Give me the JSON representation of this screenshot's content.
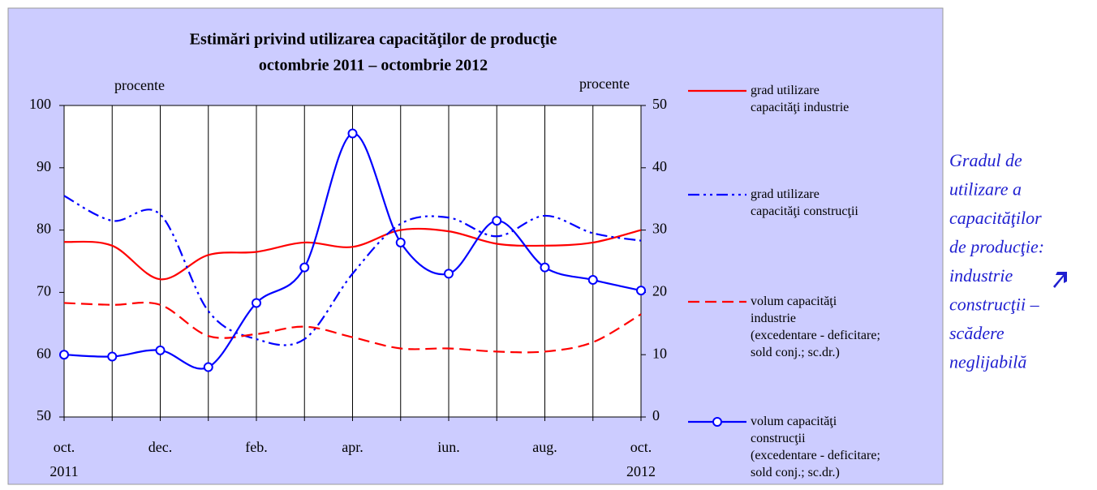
{
  "chart_data": {
    "type": "line",
    "title": "Estimări privind utilizarea capacităţilor de producţie",
    "subtitle": "octombrie 2011 – octombrie 2012",
    "y_label": "procente",
    "y2_label": "procente",
    "categories": [
      "oct.",
      null,
      "dec.",
      null,
      "feb.",
      null,
      "apr.",
      null,
      "iun.",
      null,
      "aug.",
      null,
      "oct."
    ],
    "years": [
      "2011",
      null,
      null,
      null,
      null,
      null,
      null,
      null,
      null,
      null,
      null,
      null,
      "2012"
    ],
    "ylim": [
      50,
      100
    ],
    "yticks": [
      50,
      60,
      70,
      80,
      90,
      100
    ],
    "y2lim": [
      0,
      50
    ],
    "y2ticks": [
      0,
      10,
      20,
      30,
      40,
      50
    ],
    "grid": "x",
    "series": [
      {
        "name": "grad utilizare\ncapacităţi industrie",
        "color": "#ff0000",
        "dash": "solid",
        "axis": "y",
        "values": [
          78.1,
          77.5,
          72.1,
          76,
          76.5,
          78,
          77.3,
          80,
          79.8,
          77.8,
          77.5,
          78,
          80
        ]
      },
      {
        "name": "grad utilizare\ncapacităţi construcţii",
        "color": "#0000ff",
        "dash": "dashdot",
        "axis": "y",
        "values": [
          85.5,
          81.5,
          82.5,
          67,
          62.5,
          62.5,
          73,
          81,
          82,
          79,
          82.3,
          79.5,
          78.3
        ]
      },
      {
        "name": "volum capacităţi\nindustrie\n(excedentare - deficitare;\nsold conj.; sc.dr.)",
        "color": "#ff0000",
        "dash": "dashed",
        "axis": "y2",
        "values": [
          18.3,
          18,
          18,
          13,
          13.3,
          14.5,
          12.8,
          11,
          11,
          10.5,
          10.5,
          12,
          16.5
        ]
      },
      {
        "name": "volum capacităţi\nconstrucţii\n(excedentare - deficitare;\nsold conj.; sc.dr.)",
        "color": "#0000ff",
        "dash": "solid",
        "marker": "circle",
        "axis": "y2",
        "values": [
          10,
          9.7,
          10.7,
          8,
          18.3,
          24,
          45.5,
          28,
          23,
          31.5,
          24,
          22,
          20.3
        ]
      }
    ]
  },
  "note": [
    "Gradul de",
    "utilizare a",
    "capacităţilor",
    "de producţie:",
    "industrie",
    "construcţii –",
    "scădere",
    "neglijabilă"
  ]
}
